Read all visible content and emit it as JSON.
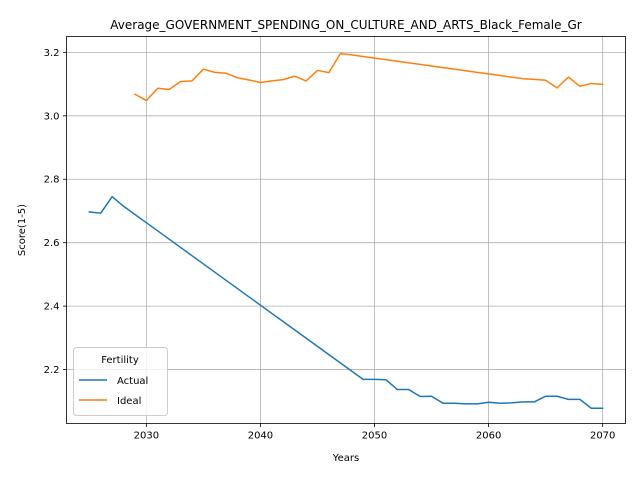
{
  "chart_data": {
    "type": "line",
    "title": "Average_GOVERNMENT_SPENDING_ON_CULTURE_AND_ARTS_Black_Female_Gr",
    "xlabel": "Years",
    "ylabel": "Score(1-5)",
    "xlim": [
      2023,
      2072
    ],
    "ylim": [
      2.03,
      3.25
    ],
    "xticks": [
      2030,
      2040,
      2050,
      2060,
      2070
    ],
    "yticks": [
      2.2,
      2.4,
      2.6,
      2.8,
      3.0,
      3.2
    ],
    "xtick_labels": [
      "2030",
      "2040",
      "2050",
      "2060",
      "2070"
    ],
    "ytick_labels": [
      "2.2",
      "2.4",
      "2.6",
      "2.8",
      "3.0",
      "3.2"
    ],
    "grid": true,
    "legend": {
      "title": "Fertility",
      "placement": "lower-left"
    },
    "series": [
      {
        "name": "Actual",
        "color": "#1f77b4",
        "x": [
          2025,
          2026,
          2027,
          2028,
          2029,
          2030,
          2031,
          2032,
          2033,
          2034,
          2035,
          2036,
          2037,
          2038,
          2039,
          2040,
          2041,
          2042,
          2043,
          2044,
          2045,
          2046,
          2047,
          2048,
          2049,
          2050,
          2051,
          2052,
          2053,
          2054,
          2055,
          2056,
          2057,
          2058,
          2059,
          2060,
          2061,
          2062,
          2063,
          2064,
          2065,
          2066,
          2067,
          2068,
          2069,
          2070
        ],
        "values": [
          2.697,
          2.693,
          2.745,
          2.715,
          2.689,
          2.663,
          2.637,
          2.611,
          2.585,
          2.559,
          2.533,
          2.507,
          2.481,
          2.455,
          2.429,
          2.403,
          2.377,
          2.351,
          2.325,
          2.299,
          2.273,
          2.247,
          2.221,
          2.195,
          2.169,
          2.169,
          2.168,
          2.137,
          2.137,
          2.115,
          2.116,
          2.094,
          2.094,
          2.092,
          2.092,
          2.097,
          2.094,
          2.095,
          2.098,
          2.098,
          2.116,
          2.116,
          2.106,
          2.106,
          2.078,
          2.078
        ]
      },
      {
        "name": "Ideal",
        "color": "#ff7f0e",
        "x": [
          2029,
          2030,
          2031,
          2032,
          2033,
          2034,
          2035,
          2036,
          2037,
          2038,
          2039,
          2040,
          2041,
          2042,
          2043,
          2044,
          2045,
          2046,
          2047,
          2048,
          2049,
          2050,
          2051,
          2052,
          2053,
          2054,
          2055,
          2056,
          2057,
          2058,
          2059,
          2060,
          2061,
          2062,
          2063,
          2064,
          2065,
          2066,
          2067,
          2068,
          2069,
          2070
        ],
        "values": [
          3.068,
          3.048,
          3.087,
          3.083,
          3.108,
          3.11,
          3.147,
          3.137,
          3.134,
          3.12,
          3.113,
          3.105,
          3.11,
          3.114,
          3.125,
          3.11,
          3.143,
          3.136,
          3.196,
          3.192,
          3.187,
          3.182,
          3.177,
          3.172,
          3.167,
          3.162,
          3.157,
          3.152,
          3.147,
          3.142,
          3.137,
          3.132,
          3.127,
          3.122,
          3.117,
          3.115,
          3.112,
          3.088,
          3.122,
          3.093,
          3.102,
          3.099
        ]
      }
    ]
  }
}
